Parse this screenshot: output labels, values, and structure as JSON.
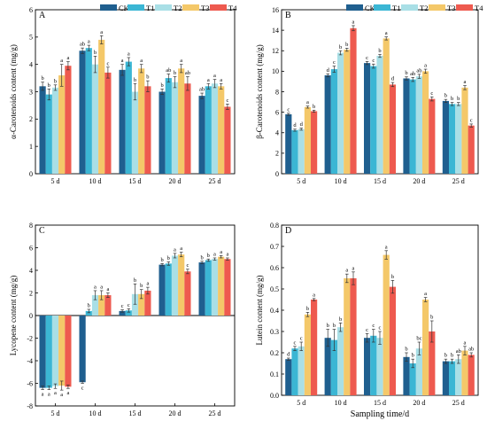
{
  "figure": {
    "legend_labels": [
      "CK",
      "T1",
      "T2",
      "T3",
      "T4"
    ],
    "colors": [
      "#1f5f8f",
      "#3bb6d4",
      "#a9dfe6",
      "#f4c869",
      "#ee5a4f"
    ],
    "xlabel": "Sampling time/d",
    "categories": [
      "5 d",
      "10 d",
      "15 d",
      "20 d",
      "25 d"
    ]
  },
  "chart_data": [
    {
      "type": "bar",
      "panel": "A",
      "categories": [
        "5 d",
        "10 d",
        "15 d",
        "20 d",
        "25 d"
      ],
      "ylabel": "α-Carotenoids content (mg/g)",
      "xlabel": "",
      "ylim": [
        0,
        6
      ],
      "yticks": [
        0,
        1,
        2,
        3,
        4,
        5,
        6
      ],
      "series": [
        {
          "name": "CK",
          "values": [
            3.2,
            4.5,
            3.8,
            3.0,
            2.85
          ],
          "err": [
            0.15,
            0.1,
            0.2,
            0.1,
            0.1
          ],
          "sig": [
            "b",
            "ab",
            "a",
            "b",
            "ab"
          ]
        },
        {
          "name": "T1",
          "values": [
            2.9,
            4.6,
            4.1,
            3.5,
            3.2
          ],
          "err": [
            0.2,
            0.1,
            0.15,
            0.15,
            0.1
          ],
          "sig": [
            "b",
            "a",
            "a",
            "ab",
            "a"
          ]
        },
        {
          "name": "T2",
          "values": [
            3.15,
            4.0,
            3.0,
            3.35,
            3.3
          ],
          "err": [
            0.1,
            0.3,
            0.3,
            0.2,
            0.15
          ],
          "sig": [
            "b",
            "b",
            "b",
            "b",
            "a"
          ]
        },
        {
          "name": "T3",
          "values": [
            3.6,
            4.9,
            3.85,
            3.85,
            3.2
          ],
          "err": [
            0.4,
            0.15,
            0.15,
            0.15,
            0.1
          ],
          "sig": [
            "a",
            "a",
            "a",
            "a",
            "a"
          ]
        },
        {
          "name": "T4",
          "values": [
            3.95,
            3.7,
            3.2,
            3.3,
            2.45
          ],
          "err": [
            0.15,
            0.2,
            0.2,
            0.25,
            0.1
          ],
          "sig": [
            "a",
            "c",
            "b",
            "ab",
            "c"
          ]
        }
      ]
    },
    {
      "type": "bar",
      "panel": "B",
      "categories": [
        "5 d",
        "10 d",
        "15 d",
        "20 d",
        "25 d"
      ],
      "ylabel": "β-Carotenoids content (mg/g)",
      "xlabel": "",
      "ylim": [
        0,
        16
      ],
      "yticks": [
        0,
        2,
        4,
        6,
        8,
        10,
        12,
        14,
        16
      ],
      "series": [
        {
          "name": "CK",
          "values": [
            5.8,
            9.6,
            10.8,
            9.3,
            7.1
          ],
          "err": [
            0.1,
            0.15,
            0.15,
            0.15,
            0.15
          ],
          "sig": [
            "c",
            "d",
            "c",
            "b",
            "b"
          ]
        },
        {
          "name": "T1",
          "values": [
            4.25,
            10.2,
            10.5,
            9.2,
            6.8
          ],
          "err": [
            0.1,
            0.3,
            0.2,
            0.2,
            0.15
          ],
          "sig": [
            "d",
            "c",
            "c",
            "ab",
            "b"
          ]
        },
        {
          "name": "T2",
          "values": [
            4.35,
            11.8,
            11.5,
            9.5,
            6.8
          ],
          "err": [
            0.1,
            0.2,
            0.15,
            0.2,
            0.15
          ],
          "sig": [
            "d",
            "b",
            "b",
            "ab",
            "b"
          ]
        },
        {
          "name": "T3",
          "values": [
            6.5,
            12.1,
            13.2,
            10.0,
            8.4
          ],
          "err": [
            0.1,
            0.15,
            0.15,
            0.2,
            0.2
          ],
          "sig": [
            "a",
            "b",
            "a",
            "a",
            "a"
          ]
        },
        {
          "name": "T4",
          "values": [
            6.1,
            14.2,
            8.7,
            7.3,
            4.7
          ],
          "err": [
            0.1,
            0.25,
            0.2,
            0.2,
            0.15
          ],
          "sig": [
            "b",
            "a",
            "d",
            "c",
            "c"
          ]
        }
      ]
    },
    {
      "type": "bar",
      "panel": "C",
      "categories": [
        "5 d",
        "10 d",
        "15 d",
        "20 d",
        "25 d"
      ],
      "ylabel": "Lycopene content (mg/g)",
      "xlabel": "Sampling time/d",
      "ylim": [
        -8,
        8
      ],
      "yticks": [
        -8,
        -6,
        -4,
        -2,
        0,
        2,
        4,
        6,
        8
      ],
      "series": [
        {
          "name": "CK",
          "values": [
            -6.4,
            -5.9,
            0.4,
            4.5,
            4.7
          ],
          "err": [
            0.15,
            0.1,
            0.1,
            0.1,
            0.1
          ],
          "sig": [
            "a",
            "c",
            "c",
            "b",
            "b"
          ]
        },
        {
          "name": "T1",
          "values": [
            -6.4,
            0.4,
            0.45,
            4.6,
            4.9
          ],
          "err": [
            0.15,
            0.15,
            0.15,
            0.15,
            0.1
          ],
          "sig": [
            "a",
            "b",
            "c",
            "b",
            "b"
          ]
        },
        {
          "name": "T2",
          "values": [
            -6.25,
            1.8,
            1.9,
            5.3,
            5.0
          ],
          "err": [
            0.2,
            0.4,
            0.9,
            0.2,
            0.1
          ],
          "sig": [
            "a",
            "a",
            "b",
            "a",
            "a"
          ]
        },
        {
          "name": "T3",
          "values": [
            -6.2,
            1.8,
            1.9,
            5.4,
            5.2
          ],
          "err": [
            0.4,
            0.4,
            0.4,
            0.2,
            0.1
          ],
          "sig": [
            "a",
            "a",
            "b",
            "a",
            "a"
          ]
        },
        {
          "name": "T4",
          "values": [
            -6.3,
            1.8,
            2.2,
            3.9,
            5.0
          ],
          "err": [
            0.15,
            0.2,
            0.3,
            0.2,
            0.1
          ],
          "sig": [
            "a",
            "a",
            "a",
            "c",
            "a"
          ]
        }
      ]
    },
    {
      "type": "bar",
      "panel": "D",
      "categories": [
        "5 d",
        "10 d",
        "15 d",
        "20 d",
        "25 d"
      ],
      "ylabel": "Lutein content (mg/g)",
      "xlabel": "Sampling time/d",
      "ylim": [
        0,
        0.8
      ],
      "yticks": [
        0.0,
        0.1,
        0.2,
        0.3,
        0.4,
        0.5,
        0.6,
        0.7,
        0.8
      ],
      "series": [
        {
          "name": "CK",
          "values": [
            0.17,
            0.27,
            0.27,
            0.18,
            0.16
          ],
          "err": [
            0.005,
            0.04,
            0.02,
            0.02,
            0.01
          ],
          "sig": [
            "d",
            "b",
            "c",
            "b",
            "b"
          ]
        },
        {
          "name": "T1",
          "values": [
            0.22,
            0.26,
            0.28,
            0.15,
            0.16
          ],
          "err": [
            0.01,
            0.05,
            0.03,
            0.02,
            0.01
          ],
          "sig": [
            "c",
            "b",
            "c",
            "b",
            "b"
          ]
        },
        {
          "name": "T2",
          "values": [
            0.23,
            0.32,
            0.27,
            0.22,
            0.17
          ],
          "err": [
            0.02,
            0.02,
            0.03,
            0.03,
            0.02
          ],
          "sig": [
            "c",
            "b",
            "c",
            "bc",
            "ab"
          ]
        },
        {
          "name": "T3",
          "values": [
            0.38,
            0.55,
            0.66,
            0.45,
            0.21
          ],
          "err": [
            0.01,
            0.02,
            0.02,
            0.01,
            0.02
          ],
          "sig": [
            "b",
            "a",
            "a",
            "a",
            "a"
          ]
        },
        {
          "name": "T4",
          "values": [
            0.45,
            0.55,
            0.51,
            0.3,
            0.19
          ],
          "err": [
            0.005,
            0.03,
            0.03,
            0.05,
            0.01
          ],
          "sig": [
            "a",
            "a",
            "b",
            "b",
            "ab"
          ]
        }
      ]
    }
  ]
}
